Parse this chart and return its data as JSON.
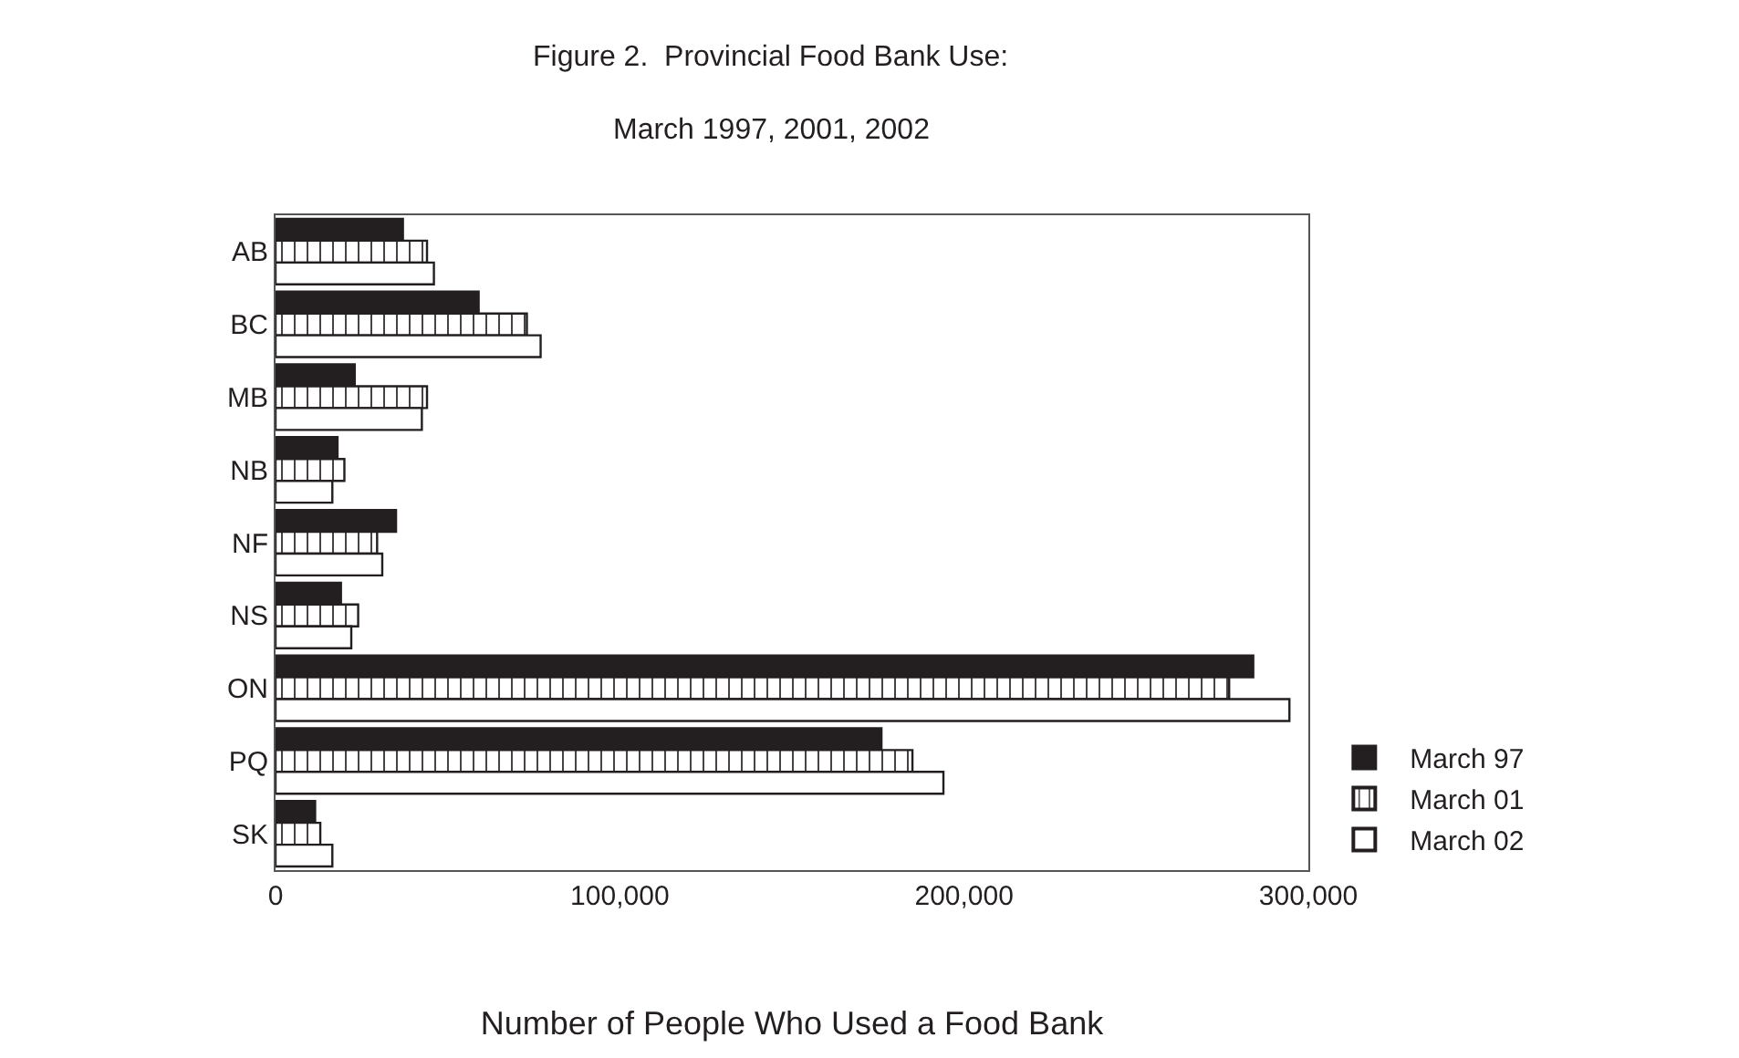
{
  "chart_data": {
    "type": "bar",
    "orientation": "horizontal",
    "title": "Figure 2.  Provincial Food Bank Use:",
    "subtitle": "March 1997, 2001, 2002",
    "xlabel": "Number of People Who Used a Food Bank",
    "categories": [
      "AB",
      "BC",
      "MB",
      "NB",
      "NF",
      "NS",
      "ON",
      "PQ",
      "SK"
    ],
    "series": [
      {
        "name": "March 97",
        "color": "#231f20",
        "values": [
          37000,
          59000,
          23000,
          18000,
          35000,
          19000,
          284000,
          176000,
          11500
        ]
      },
      {
        "name": "March 01",
        "color": "#231f20",
        "values": [
          44000,
          73000,
          44000,
          20000,
          29500,
          24000,
          277000,
          185000,
          13000
        ]
      },
      {
        "name": "March 02",
        "color": "#ffffff",
        "values": [
          46000,
          77000,
          42500,
          16500,
          31000,
          22000,
          294500,
          194000,
          16500
        ]
      }
    ],
    "xlim": [
      0,
      300000
    ],
    "xticks": [
      0,
      {
        "value": 100000,
        "label": "100,000"
      },
      {
        "value": 200000,
        "label": "200,000"
      },
      {
        "value": 300000,
        "label": "300,000"
      }
    ],
    "legend": "bottom right"
  }
}
